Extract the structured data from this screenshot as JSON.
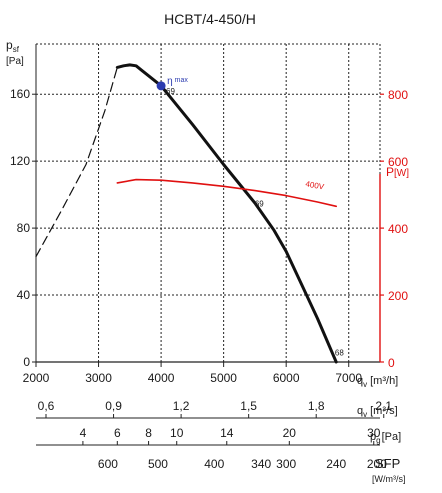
{
  "chart_data": {
    "type": "line",
    "title": "HCBT/4-450/H",
    "y_left_label": {
      "symbol": "p",
      "sub": "sf",
      "unit": "[Pa]"
    },
    "y_right_label": {
      "symbol": "P",
      "unit": "[W]"
    },
    "y_left_ticks": [
      "0",
      "40",
      "80",
      "120",
      "160"
    ],
    "y_left_range": [
      0,
      190
    ],
    "y_right_ticks": [
      "0",
      "200",
      "400",
      "600",
      "800"
    ],
    "y_right_range": [
      0,
      950
    ],
    "x_range": [
      2000,
      7500
    ],
    "x_ticks": [
      "2000",
      "3000",
      "4000",
      "5000",
      "6000",
      "7000"
    ],
    "x_axis_label": "q",
    "x_axis_label_sub": "v",
    "x_axis_unit": "[m³/h]",
    "scale_m3s": {
      "ticks": [
        {
          "label": "0,6",
          "value": 0.6
        },
        {
          "label": "0,9",
          "value": 0.9
        },
        {
          "label": "1,2",
          "value": 1.2
        },
        {
          "label": "1,5",
          "value": 1.5
        },
        {
          "label": "1,8",
          "value": 1.8
        },
        {
          "label": "2,1",
          "value": 2.1
        }
      ],
      "label": "q",
      "label_sub": "v",
      "unit": "[m³/s]"
    },
    "scale_pg": {
      "ticks": [
        {
          "label": "4",
          "q": 2750
        },
        {
          "label": "6",
          "q": 3300
        },
        {
          "label": "8",
          "q": 3800
        },
        {
          "label": "10",
          "q": 4250
        },
        {
          "label": "14",
          "q": 5050
        },
        {
          "label": "20",
          "q": 6050
        },
        {
          "label": "30",
          "q": 7400
        }
      ],
      "label": "p",
      "label_sub": "g",
      "unit": "[Pa]"
    },
    "scale_sfp": {
      "ticks": [
        {
          "label": "600",
          "q": 3150
        },
        {
          "label": "500",
          "q": 3950
        },
        {
          "label": "400",
          "q": 4850
        },
        {
          "label": "340",
          "q": 5600
        },
        {
          "label": "300",
          "q": 6000
        },
        {
          "label": "240",
          "q": 6800
        },
        {
          "label": "200",
          "q": 7450
        }
      ],
      "label": "SFP",
      "unit": "[W/m³/s]"
    },
    "series": [
      {
        "role": "pressure-solid",
        "color": "#111111",
        "points": [
          [
            3300,
            176
          ],
          [
            3400,
            177
          ],
          [
            3500,
            177.5
          ],
          [
            3600,
            177
          ],
          [
            3700,
            174
          ],
          [
            3800,
            171
          ],
          [
            4000,
            165
          ],
          [
            4500,
            142
          ],
          [
            5000,
            118
          ],
          [
            5500,
            95
          ],
          [
            5800,
            79
          ],
          [
            6000,
            66
          ],
          [
            6200,
            50
          ],
          [
            6500,
            26
          ],
          [
            6800,
            0
          ]
        ]
      },
      {
        "role": "pressure-dashed",
        "color": "#111111",
        "points": [
          [
            2000,
            63
          ],
          [
            2400,
            90
          ],
          [
            2800,
            118
          ],
          [
            3100,
            150
          ],
          [
            3300,
            176
          ]
        ]
      },
      {
        "role": "power",
        "axis": "right",
        "color": "#e01010",
        "points": [
          [
            3300,
            535
          ],
          [
            3600,
            545
          ],
          [
            4000,
            543
          ],
          [
            4500,
            535
          ],
          [
            5000,
            525
          ],
          [
            5500,
            512
          ],
          [
            6000,
            497
          ],
          [
            6500,
            478
          ],
          [
            6800,
            465
          ]
        ]
      }
    ],
    "annotations": [
      {
        "text": "η",
        "sub": "max",
        "q": 4000,
        "p": 165,
        "kind": "marker",
        "color": "#2b3bb0"
      },
      {
        "text": "69",
        "q": 4150,
        "p": 160
      },
      {
        "text": "69",
        "q": 5570,
        "p": 93
      },
      {
        "text": "68",
        "q": 6850,
        "p": 4
      },
      {
        "text": "400V",
        "q": 6450,
        "w": 520,
        "color": "#e01010"
      }
    ],
    "grid": true
  }
}
